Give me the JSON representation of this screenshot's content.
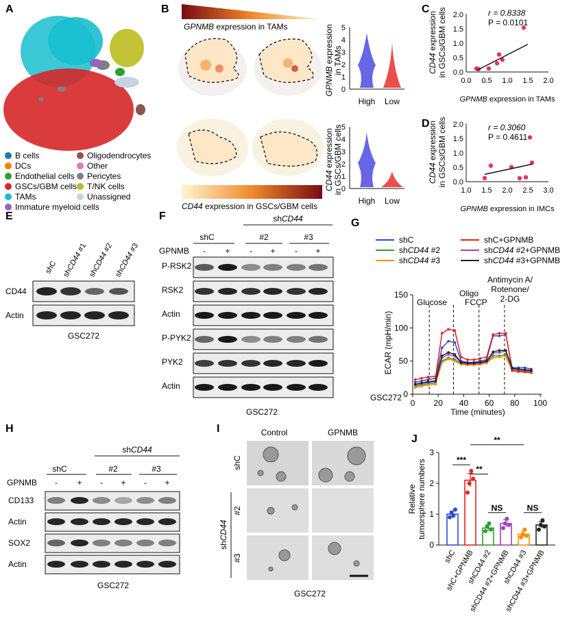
{
  "panels": {
    "A": "A",
    "B": "B",
    "C": "C",
    "D": "D",
    "E": "E",
    "F": "F",
    "G": "G",
    "H": "H",
    "I": "I",
    "J": "J"
  },
  "panelA": {
    "legend": [
      {
        "label": "B cells",
        "color": "#1f77b4"
      },
      {
        "label": "DCs",
        "color": "#ff7f0e"
      },
      {
        "label": "Endothelial cells",
        "color": "#2ca02c"
      },
      {
        "label": "GSCs/GBM cells",
        "color": "#d62728"
      },
      {
        "label": "TAMs",
        "color": "#17becf"
      },
      {
        "label": "Immature myeloid cells",
        "color": "#9467bd"
      },
      {
        "label": "Oligodendrocytes",
        "color": "#8c564b"
      },
      {
        "label": "Other",
        "color": "#e377c2"
      },
      {
        "label": "Pericytes",
        "color": "#7f7f7f"
      },
      {
        "label": "T/NK cells",
        "color": "#bcbd22"
      },
      {
        "label": "Unassigned",
        "color": "#c7d3e3"
      }
    ]
  },
  "panelB": {
    "top_gene": "GPNMB",
    "top_rest": " expression in TAMs",
    "bot_gene": "CD44",
    "bot_rest": " expression in GSCs/GBM cells",
    "violin_top_ylabel_gene": "GPNMB",
    "violin_top_ylabel_rest": " expression",
    "violin_top_ylabel_2": "in TAMs",
    "violin_bot_ylabel_gene": "CD44",
    "violin_bot_ylabel_rest": " expression",
    "violin_bot_ylabel_2": "in GSCs/GBM cells",
    "categories": [
      "High",
      "Low"
    ],
    "top_yticks": [
      "0",
      "1",
      "2",
      "3",
      "4",
      "5"
    ],
    "bot_yticks": [
      "0",
      "1",
      "2",
      "3",
      "4",
      "5"
    ]
  },
  "panelC": {
    "r_text": "r = 0.8338",
    "p_text": "P = 0.0101",
    "xlabel_gene": "GPNMB",
    "xlabel_rest": " expression in TAMs",
    "ylabel_gene": "CD44",
    "ylabel_rest": " expression",
    "ylabel_2": "in GSCs/GBM cells",
    "xticks": [
      "0.0",
      "0.5",
      "1.0",
      "1.5",
      "2.0"
    ],
    "yticks": [
      "0.0",
      "0.5",
      "1.0",
      "1.5",
      "2.0"
    ]
  },
  "panelD": {
    "r_text": "r = 0.3060",
    "p_text": "P = 0.4611",
    "xlabel_gene": "GPNMB",
    "xlabel_rest": " expression in IMCs",
    "ylabel_gene": "CD44",
    "ylabel_rest": " expression",
    "ylabel_2": "in GSCs/GBM cells",
    "xticks": [
      "1.0",
      "1.5",
      "2.0",
      "2.5",
      "3.0"
    ],
    "yticks": [
      "0.0",
      "0.5",
      "1.0",
      "1.5",
      "2.0"
    ]
  },
  "panelE": {
    "lanes": [
      "shC",
      "shCD44 #1",
      "shCD44 #2",
      "shCD44 #3"
    ],
    "rows": [
      "CD44",
      "Actin"
    ],
    "cell": "GSC272"
  },
  "panelF": {
    "group_shC": "shC",
    "group_sh": "sh",
    "group_gene": "CD44",
    "sub_2": "#2",
    "sub_3": "#3",
    "gpnmb": "GPNMB",
    "signs": [
      "-",
      "+",
      "-",
      "+",
      "-",
      "+"
    ],
    "rows": [
      "P-RSK2",
      "RSK2",
      "Actin",
      "P-PYK2",
      "PYK2",
      "Actin"
    ],
    "cell": "GSC272"
  },
  "panelH": {
    "group_shC": "shC",
    "group_sh": "sh",
    "group_gene": "CD44",
    "sub_2": "#2",
    "sub_3": "#3",
    "gpnmb": "GPNMB",
    "signs": [
      "-",
      "+",
      "-",
      "+",
      "-",
      "+"
    ],
    "rows": [
      "CD133",
      "Actin",
      "SOX2",
      "Actin"
    ],
    "cell": "GSC272"
  },
  "panelI": {
    "col1": "Control",
    "col2": "GPNMB",
    "row1": "shC",
    "row2": "#2",
    "row3": "#3",
    "side_sh": "sh",
    "side_gene": "CD44",
    "cell": "GSC272"
  },
  "panelG": {
    "legend": [
      "shC",
      "shCD44 #2",
      "shCD44 #3",
      "shC+GPNMB",
      "shCD44 #2+GPNMB",
      "shCD44 #3+GPNMB"
    ],
    "annot": [
      "Glucose",
      "Oligo",
      "FCCP",
      "Antimycin A/",
      "Rotenone/",
      "2-DG"
    ],
    "cell": "GSC272"
  },
  "chart_data": [
    {
      "type": "scatter",
      "id": "C",
      "xlabel": "GPNMB expression in TAMs",
      "ylabel": "CD44 expression in GSCs/GBM cells",
      "xlim": [
        0,
        2
      ],
      "ylim": [
        0,
        2
      ],
      "points": [
        [
          0.25,
          0.12
        ],
        [
          0.3,
          0.1
        ],
        [
          0.55,
          0.12
        ],
        [
          0.75,
          0.3
        ],
        [
          0.8,
          0.6
        ],
        [
          0.88,
          0.42
        ],
        [
          1.4,
          1.52
        ]
      ],
      "fit": [
        [
          0.25,
          0.05
        ],
        [
          1.5,
          0.95
        ]
      ],
      "color": "#e8306b"
    },
    {
      "type": "scatter",
      "id": "D",
      "xlabel": "GPNMB expression in IMCs",
      "ylabel": "CD44 expression in GSCs/GBM cells",
      "xlim": [
        1,
        3
      ],
      "ylim": [
        0,
        2
      ],
      "points": [
        [
          1.45,
          0.12
        ],
        [
          1.6,
          0.55
        ],
        [
          2.1,
          0.5
        ],
        [
          2.3,
          0.12
        ],
        [
          2.45,
          0.15
        ],
        [
          2.55,
          1.52
        ],
        [
          2.6,
          0.65
        ]
      ],
      "fit": [
        [
          1.45,
          0.25
        ],
        [
          2.6,
          0.6
        ]
      ],
      "color": "#e8306b"
    },
    {
      "type": "line",
      "id": "G",
      "xlabel": "Time (minutes)",
      "ylabel": "ECAR (mpH/min)",
      "xlim": [
        0,
        100
      ],
      "ylim": [
        0,
        150
      ],
      "xticks": [
        "0",
        "20",
        "40",
        "60",
        "80",
        "100"
      ],
      "yticks": [
        "0",
        "50",
        "100",
        "150"
      ],
      "x": [
        2,
        7,
        12,
        18,
        23,
        28,
        33,
        38,
        43,
        48,
        53,
        58,
        63,
        68,
        73,
        78,
        83,
        88,
        93
      ],
      "series": [
        {
          "name": "shC",
          "color": "#2b4bd6",
          "values": [
            18,
            20,
            22,
            24,
            70,
            80,
            78,
            50,
            48,
            48,
            50,
            52,
            88,
            88,
            90,
            40,
            40,
            40,
            38
          ]
        },
        {
          "name": "shCD44 #2",
          "color": "#2ca02c",
          "values": [
            12,
            14,
            16,
            17,
            50,
            55,
            52,
            46,
            45,
            45,
            46,
            48,
            58,
            58,
            60,
            36,
            35,
            35,
            34
          ]
        },
        {
          "name": "shCD44 #3",
          "color": "#ff8c00",
          "values": [
            10,
            12,
            14,
            15,
            48,
            53,
            50,
            45,
            44,
            44,
            45,
            47,
            55,
            56,
            57,
            35,
            34,
            33,
            32
          ]
        },
        {
          "name": "shC+GPNMB",
          "color": "#e82020",
          "values": [
            22,
            24,
            26,
            27,
            92,
            98,
            96,
            56,
            52,
            52,
            54,
            56,
            90,
            92,
            92,
            36,
            34,
            34,
            33
          ]
        },
        {
          "name": "shCD44 #2+GPNMB",
          "color": "#a040c0",
          "values": [
            14,
            16,
            18,
            19,
            55,
            60,
            57,
            47,
            46,
            46,
            47,
            49,
            62,
            63,
            65,
            38,
            37,
            36,
            35
          ]
        },
        {
          "name": "shCD44 #3+GPNMB",
          "color": "#222222",
          "values": [
            15,
            17,
            19,
            20,
            58,
            63,
            60,
            48,
            47,
            47,
            48,
            50,
            64,
            66,
            66,
            39,
            38,
            37,
            36
          ]
        }
      ],
      "vlines": [
        13,
        32,
        52,
        72
      ]
    },
    {
      "type": "bar",
      "id": "J",
      "ylabel": "Relative tumorsphere numbers",
      "ylim": [
        0,
        3
      ],
      "yticks": [
        "0",
        "1",
        "2",
        "3"
      ],
      "categories": [
        "shC",
        "shC+GPNMB",
        "shCD44 #2",
        "shCD44 #2+GPNMB",
        "shCD44 #3",
        "shCD44 #3+GPNMB"
      ],
      "values": [
        1.0,
        2.1,
        0.55,
        0.7,
        0.35,
        0.65
      ],
      "errors": [
        0.1,
        0.22,
        0.1,
        0.12,
        0.1,
        0.1
      ],
      "colors": [
        "#2b4bd6",
        "#e82020",
        "#2ca02c",
        "#a040c0",
        "#ff8c00",
        "#222222"
      ],
      "points": [
        [
          0.9,
          1.05,
          0.95,
          1.15
        ],
        [
          1.7,
          2.0,
          2.4,
          2.15
        ],
        [
          0.45,
          0.6,
          0.7,
          0.5
        ],
        [
          0.55,
          0.7,
          0.85,
          0.65
        ],
        [
          0.25,
          0.35,
          0.5,
          0.3
        ],
        [
          0.5,
          0.65,
          0.8,
          0.6
        ]
      ],
      "significance": [
        {
          "text": "***",
          "from": 0,
          "to": 1,
          "level": 2.6
        },
        {
          "text": "**",
          "from": 1,
          "to": 2,
          "level": 2.3
        },
        {
          "text": "**",
          "from": 1,
          "to": 4,
          "level": 3.25
        },
        {
          "text": "NS",
          "from": 2,
          "to": 3,
          "level": 1.05
        },
        {
          "text": "NS",
          "from": 4,
          "to": 5,
          "level": 1.05
        }
      ]
    }
  ]
}
